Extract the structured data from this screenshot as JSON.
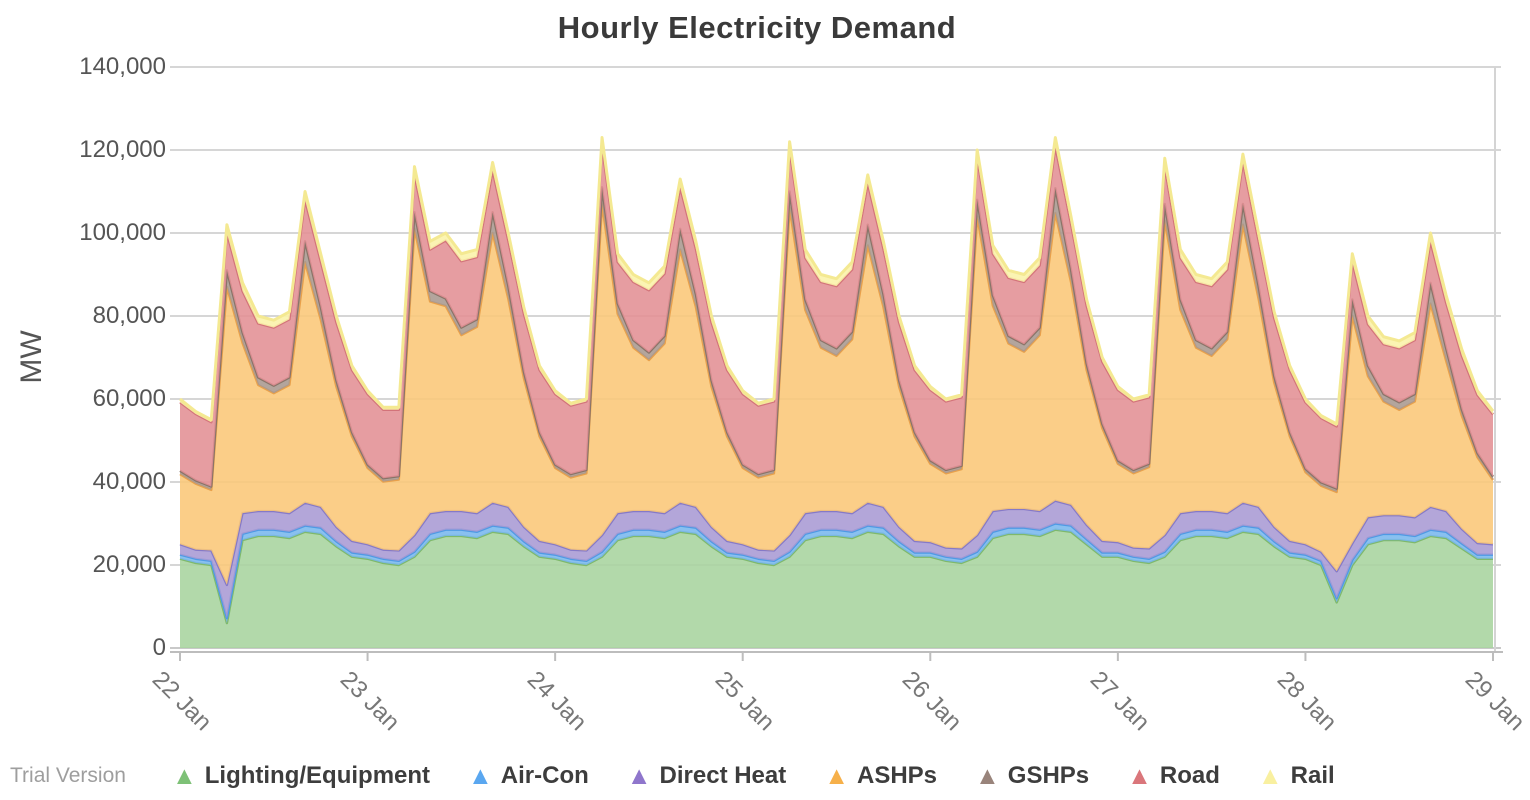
{
  "page": {
    "watermark": "Trial Version"
  },
  "chart": {
    "title": "Hourly Electricity Demand",
    "y_axis": {
      "label": "MW",
      "min": 0,
      "max": 140000,
      "step": 20000,
      "tick_labels": [
        "0",
        "20,000",
        "40,000",
        "60,000",
        "80,000",
        "100,000",
        "120,000",
        "140,000"
      ]
    },
    "x_axis": {
      "tick_labels": [
        "22 Jan",
        "23 Jan",
        "24 Jan",
        "25 Jan",
        "26 Jan",
        "27 Jan",
        "28 Jan",
        "29 Jan"
      ],
      "tick_hours": [
        0,
        24,
        48,
        72,
        96,
        120,
        144,
        168
      ]
    },
    "legend": [
      {
        "label": "Lighting/Equipment",
        "color": "#7ec177"
      },
      {
        "label": "Air-Con",
        "color": "#5aa7f0"
      },
      {
        "label": "Direct Heat",
        "color": "#8f76cc"
      },
      {
        "label": "ASHPs",
        "color": "#f6b04a"
      },
      {
        "label": "GSHPs",
        "color": "#99847b"
      },
      {
        "label": "Road",
        "color": "#da767b"
      },
      {
        "label": "Rail",
        "color": "#f9f0a0"
      }
    ],
    "grid_color": "#c9c9c9",
    "axis_color": "#bdbdbd"
  },
  "chart_data": {
    "type": "area",
    "stacked": true,
    "title": "Hourly Electricity Demand",
    "xlabel": "",
    "ylabel": "MW",
    "ylim": [
      0,
      140000
    ],
    "unit": "MW",
    "x_unit": "hours since 22 Jan 00:00",
    "x_hours": [
      0,
      2,
      4,
      6,
      8,
      10,
      12,
      14,
      16,
      18,
      20,
      22,
      24,
      26,
      28,
      30,
      32,
      34,
      36,
      38,
      40,
      42,
      44,
      46,
      48,
      50,
      52,
      54,
      56,
      58,
      60,
      62,
      64,
      66,
      68,
      70,
      72,
      74,
      76,
      78,
      80,
      82,
      84,
      86,
      88,
      90,
      92,
      94,
      96,
      98,
      100,
      102,
      104,
      106,
      108,
      110,
      112,
      114,
      116,
      118,
      120,
      122,
      124,
      126,
      128,
      130,
      132,
      134,
      136,
      138,
      140,
      142,
      144,
      146,
      148,
      150,
      152,
      154,
      156,
      158,
      160,
      162,
      164,
      166,
      168
    ],
    "series": [
      {
        "name": "Lighting/Equipment",
        "fill": "#a7d49e",
        "stroke": "#7fb96b",
        "values": [
          21500,
          20500,
          20000,
          6000,
          26000,
          27000,
          27000,
          26500,
          28000,
          27500,
          24500,
          22000,
          21500,
          20500,
          20000,
          22000,
          26000,
          27000,
          27000,
          26500,
          28000,
          27500,
          24500,
          22000,
          21500,
          20500,
          20000,
          22000,
          26000,
          27000,
          27000,
          26500,
          28000,
          27500,
          24500,
          22000,
          21500,
          20500,
          20000,
          22000,
          26000,
          27000,
          27000,
          26500,
          28000,
          27500,
          24500,
          22000,
          22000,
          21000,
          20500,
          22000,
          26500,
          27500,
          27500,
          27000,
          28500,
          28000,
          25000,
          22000,
          22000,
          21000,
          20500,
          22000,
          26000,
          27000,
          27000,
          26500,
          28000,
          27500,
          24500,
          22000,
          21500,
          20000,
          11000,
          20000,
          25000,
          26000,
          26000,
          25500,
          27000,
          26500,
          24000,
          21500,
          21500
        ]
      },
      {
        "name": "Air-Con",
        "fill": "#79b7ee",
        "stroke": "#4e9ae4",
        "values": [
          1000,
          1000,
          1000,
          1200,
          1500,
          1500,
          1500,
          1500,
          1500,
          1500,
          1200,
          1000,
          1000,
          1000,
          1000,
          1200,
          1500,
          1500,
          1500,
          1500,
          1500,
          1500,
          1200,
          1000,
          1000,
          1000,
          1000,
          1200,
          1500,
          1500,
          1500,
          1500,
          1500,
          1500,
          1200,
          1000,
          1000,
          1000,
          1000,
          1200,
          1500,
          1500,
          1500,
          1500,
          1500,
          1500,
          1200,
          1000,
          1000,
          1000,
          1000,
          1200,
          1500,
          1500,
          1500,
          1500,
          1500,
          1500,
          1200,
          1000,
          1000,
          1000,
          1000,
          1200,
          1500,
          1500,
          1500,
          1500,
          1500,
          1500,
          1200,
          1000,
          1000,
          1000,
          1000,
          1200,
          1500,
          1500,
          1500,
          1500,
          1500,
          1500,
          1200,
          1000,
          1000
        ]
      },
      {
        "name": "Direct Heat",
        "fill": "#a89ad4",
        "stroke": "#8579c7",
        "values": [
          2500,
          2200,
          2500,
          8000,
          5000,
          4500,
          4500,
          4500,
          5500,
          5000,
          3500,
          2800,
          2500,
          2200,
          2500,
          4000,
          5000,
          4500,
          4500,
          4500,
          5500,
          5000,
          3500,
          2800,
          2500,
          2200,
          2500,
          4000,
          5000,
          4500,
          4500,
          4500,
          5500,
          5000,
          3500,
          2800,
          2500,
          2200,
          2500,
          4000,
          5000,
          4500,
          4500,
          4500,
          5500,
          5000,
          3500,
          2800,
          2500,
          2200,
          2500,
          4000,
          5000,
          4500,
          4500,
          4500,
          5500,
          5000,
          3500,
          2800,
          2500,
          2200,
          2500,
          4000,
          5000,
          4500,
          4500,
          4500,
          5500,
          5000,
          3500,
          2800,
          2500,
          2200,
          6500,
          4000,
          5000,
          4500,
          4500,
          4500,
          5500,
          5000,
          3500,
          2800,
          2500
        ]
      },
      {
        "name": "ASHPs",
        "fill": "#fbc778",
        "stroke": "#e9a14b",
        "values": [
          16900,
          15900,
          14600,
          71800,
          41000,
          30400,
          28400,
          30900,
          58000,
          45200,
          33800,
          25200,
          18400,
          16400,
          17100,
          73800,
          51000,
          49400,
          42400,
          44900,
          65000,
          50200,
          35800,
          25200,
          18400,
          17400,
          18600,
          79800,
          48000,
          39400,
          36400,
          40900,
          61000,
          48200,
          33800,
          25200,
          18400,
          17400,
          18600,
          78800,
          49000,
          39400,
          37400,
          41900,
          62000,
          48200,
          33800,
          25200,
          18900,
          17900,
          19100,
          76800,
          49500,
          39900,
          37900,
          42400,
          69300,
          53700,
          37300,
          27200,
          18900,
          17900,
          19600,
          75800,
          49000,
          39400,
          37400,
          41900,
          67000,
          50200,
          34800,
          25200,
          17400,
          15900,
          19100,
          54800,
          34000,
          27400,
          25400,
          27900,
          49000,
          36200,
          27300,
          20700,
          15500
        ]
      },
      {
        "name": "GSHPs",
        "fill": "#a9988f",
        "stroke": "#8a7468",
        "values": [
          800,
          800,
          800,
          4000,
          2500,
          1800,
          1800,
          1800,
          5000,
          3000,
          1500,
          1000,
          800,
          800,
          800,
          4000,
          2500,
          1800,
          1800,
          1800,
          5000,
          3000,
          1500,
          1000,
          800,
          800,
          800,
          4000,
          2500,
          1800,
          1800,
          1800,
          5000,
          3000,
          1500,
          1000,
          800,
          800,
          800,
          4000,
          2500,
          1800,
          1800,
          1800,
          5000,
          3000,
          1500,
          1000,
          800,
          800,
          800,
          4000,
          2500,
          1800,
          1800,
          1800,
          6000,
          3000,
          1500,
          1000,
          800,
          800,
          800,
          4000,
          2500,
          1800,
          1800,
          1800,
          5000,
          3000,
          1500,
          1000,
          800,
          800,
          800,
          4000,
          2500,
          1800,
          1800,
          1800,
          5000,
          3000,
          1500,
          1000,
          800
        ]
      },
      {
        "name": "Road",
        "fill": "#e29094",
        "stroke": "#d3737a",
        "values": [
          16500,
          16000,
          15500,
          9000,
          10000,
          13000,
          14000,
          14000,
          10000,
          11000,
          14000,
          15000,
          17000,
          16500,
          16000,
          9000,
          10000,
          14000,
          16000,
          15000,
          10000,
          11000,
          14000,
          15000,
          17000,
          16500,
          16500,
          10000,
          10000,
          14000,
          15000,
          15000,
          10000,
          11000,
          14000,
          15000,
          17000,
          16500,
          16500,
          10000,
          10000,
          14000,
          15000,
          15000,
          10000,
          11000,
          14000,
          15000,
          17000,
          16500,
          16500,
          10000,
          10000,
          14000,
          15000,
          15000,
          10000,
          11000,
          14000,
          15000,
          17000,
          16500,
          16000,
          9000,
          10000,
          14000,
          15000,
          15000,
          10000,
          11000,
          14000,
          15000,
          16000,
          15500,
          15000,
          9000,
          10000,
          12000,
          13000,
          13000,
          10000,
          11000,
          13000,
          14000,
          15000
        ]
      },
      {
        "name": "Rail",
        "fill": "#fbf3a9",
        "stroke": "#f4e992",
        "values": [
          800,
          600,
          600,
          2000,
          2000,
          1800,
          1800,
          1800,
          2000,
          1800,
          1500,
          1000,
          800,
          600,
          600,
          2000,
          2000,
          1800,
          1800,
          1800,
          2000,
          1800,
          1500,
          1000,
          800,
          600,
          600,
          2000,
          2000,
          1800,
          1800,
          1800,
          2000,
          1800,
          1500,
          1000,
          800,
          600,
          600,
          2000,
          2000,
          1800,
          1800,
          1800,
          2000,
          1800,
          1500,
          1000,
          800,
          600,
          600,
          2000,
          2000,
          1800,
          1800,
          1800,
          2200,
          1800,
          1500,
          1000,
          800,
          600,
          600,
          2000,
          2000,
          1800,
          1800,
          1800,
          2000,
          1800,
          1500,
          1000,
          800,
          600,
          600,
          2000,
          2000,
          1800,
          1800,
          1800,
          2000,
          1800,
          1500,
          1000,
          800
        ]
      }
    ]
  }
}
